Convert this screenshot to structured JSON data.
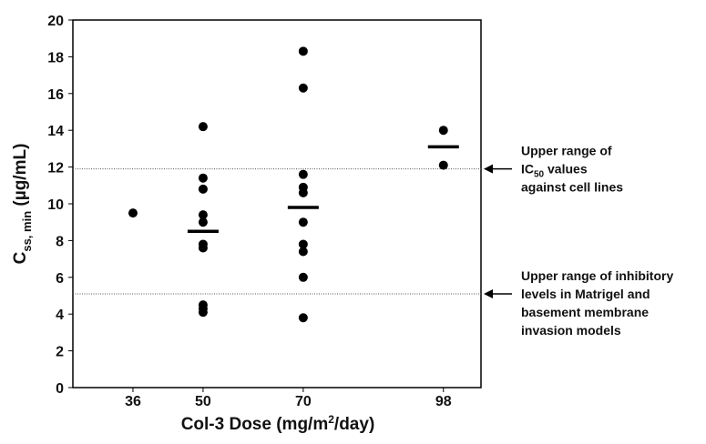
{
  "chart_data": {
    "type": "strip",
    "y_label": {
      "main": "C",
      "sub": "ss, min",
      "unit": " (µg/mL)"
    },
    "x_label": {
      "main": "Col-3 Dose (mg/m",
      "sup": "2",
      "rest": "/day)"
    },
    "xlim": [
      24,
      105.5
    ],
    "xticks": [
      36,
      50,
      70,
      98
    ],
    "ylim": [
      0,
      20
    ],
    "yticks": [
      0,
      2,
      4,
      6,
      8,
      10,
      12,
      14,
      16,
      18,
      20
    ],
    "color": "#000000",
    "points": {
      "x": [
        36,
        50,
        50,
        50,
        50,
        50,
        50,
        50,
        50,
        50,
        50,
        70,
        70,
        70,
        70,
        70,
        70,
        70,
        70,
        70,
        70,
        98,
        98
      ],
      "y": [
        9.5,
        14.2,
        11.4,
        10.8,
        9.4,
        9.0,
        7.8,
        7.6,
        4.5,
        4.3,
        4.1,
        18.3,
        16.3,
        11.6,
        10.9,
        10.6,
        9.0,
        7.8,
        7.4,
        6.0,
        3.8,
        14.0,
        12.1
      ]
    },
    "means": {
      "x": [
        50,
        70,
        98
      ],
      "y": [
        8.5,
        9.8,
        13.1
      ]
    },
    "reference_lines": [
      {
        "value": 11.9,
        "lines": [
          [
            {
              "text": "Upper range of"
            }
          ],
          [
            {
              "text": "IC"
            },
            {
              "text": "50",
              "sub": true
            },
            {
              "text": " values"
            }
          ],
          [
            {
              "text": "against cell lines"
            }
          ]
        ]
      },
      {
        "value": 5.1,
        "lines": [
          [
            {
              "text": "Upper range of inhibitory"
            }
          ],
          [
            {
              "text": "levels in Matrigel and"
            }
          ],
          [
            {
              "text": "basement membrane"
            }
          ],
          [
            {
              "text": "invasion models"
            }
          ]
        ]
      }
    ]
  }
}
